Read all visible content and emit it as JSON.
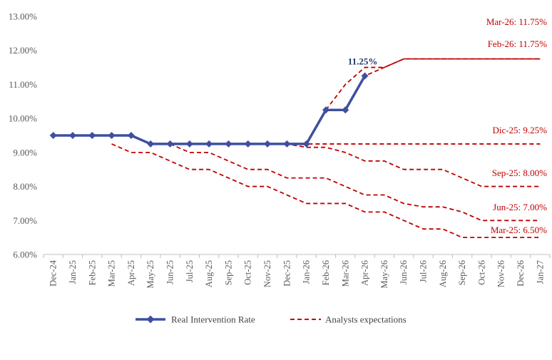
{
  "chart_data": {
    "type": "line",
    "title": "",
    "xlabel": "",
    "ylabel": "",
    "ylim": [
      6.0,
      13.0
    ],
    "yticks": [
      6.0,
      7.0,
      8.0,
      9.0,
      10.0,
      11.0,
      12.0,
      13.0
    ],
    "ytick_labels": [
      "6.00%",
      "7.00%",
      "8.00%",
      "9.00%",
      "10.00%",
      "11.00%",
      "12.00%",
      "13.00%"
    ],
    "categories": [
      "Dec-24",
      "Jan-25",
      "Feb-25",
      "Mar-25",
      "Apr-25",
      "May-25",
      "Jun-25",
      "Jul-25",
      "Aug-25",
      "Sep-25",
      "Oct-25",
      "Nov-25",
      "Dec-25",
      "Jan-26",
      "Feb-26",
      "Mar-26",
      "Apr-26",
      "May-26",
      "Jun-26",
      "Jul-26",
      "Aug-26",
      "Sep-26",
      "Oct-26",
      "Nov-26",
      "Dec-26",
      "Jan-27"
    ],
    "grid": false,
    "legend_position": "bottom",
    "real_series": {
      "name": "Real Intervention Rate",
      "color": "#3f4f9f",
      "values": [
        9.5,
        9.5,
        9.5,
        9.5,
        9.5,
        9.25,
        9.25,
        9.25,
        9.25,
        9.25,
        9.25,
        9.25,
        9.25,
        9.25,
        10.25,
        10.25,
        11.25
      ],
      "last_label": "11.25%"
    },
    "expectations": {
      "name": "Analysts expectations",
      "color": "#c00000",
      "series": [
        {
          "label": "Mar-25: 6.50%",
          "values": [
            null,
            null,
            null,
            9.25,
            9.0,
            9.0,
            8.75,
            8.5,
            8.5,
            8.25,
            8.0,
            8.0,
            7.75,
            7.5,
            7.5,
            7.5,
            7.25,
            7.25,
            7.0,
            6.75,
            6.75,
            6.5,
            6.5,
            6.5,
            6.5,
            6.5
          ]
        },
        {
          "label": "Jun-25: 7.00%",
          "values": [
            null,
            null,
            null,
            null,
            null,
            null,
            9.25,
            9.0,
            9.0,
            8.75,
            8.5,
            8.5,
            8.25,
            8.25,
            8.25,
            8.0,
            7.75,
            7.75,
            7.5,
            7.4,
            7.4,
            7.25,
            7.0,
            7.0,
            7.0,
            7.0
          ]
        },
        {
          "label": "Sep-25: 8.00%",
          "values": [
            null,
            null,
            null,
            null,
            null,
            null,
            null,
            null,
            null,
            9.25,
            9.25,
            9.25,
            9.25,
            9.15,
            9.15,
            9.0,
            8.75,
            8.75,
            8.5,
            8.5,
            8.5,
            8.25,
            8.0,
            8.0,
            8.0,
            8.0
          ]
        },
        {
          "label": "Dic-25: 9.25%",
          "values": [
            null,
            null,
            null,
            null,
            null,
            null,
            null,
            null,
            null,
            null,
            null,
            null,
            9.25,
            9.25,
            9.25,
            9.25,
            9.25,
            9.25,
            9.25,
            9.25,
            9.25,
            9.25,
            9.25,
            9.25,
            9.25,
            9.25
          ]
        },
        {
          "label": "Feb-26: 11.75%",
          "values": [
            null,
            null,
            null,
            null,
            null,
            null,
            null,
            null,
            null,
            null,
            null,
            null,
            null,
            null,
            10.25,
            11.0,
            11.5,
            11.5,
            11.75,
            11.75,
            11.75,
            11.75,
            11.75,
            11.75,
            11.75,
            11.75
          ]
        },
        {
          "label": "Mar-26: 11.75%",
          "values": [
            null,
            null,
            null,
            null,
            null,
            null,
            null,
            null,
            null,
            null,
            null,
            null,
            null,
            null,
            null,
            10.25,
            11.25,
            11.5,
            11.75,
            11.75,
            11.75,
            11.75,
            11.75,
            11.75,
            11.75,
            11.75
          ]
        }
      ]
    }
  }
}
